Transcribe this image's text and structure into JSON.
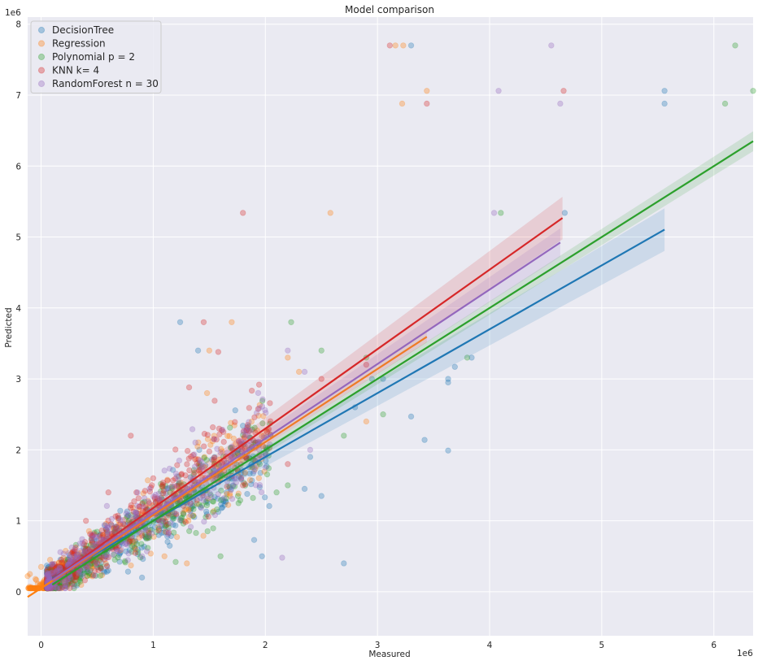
{
  "chart_data": {
    "type": "scatter",
    "title": "Model comparison",
    "xlabel": "Measured",
    "ylabel": "Predicted",
    "x_offset_label": "1e6",
    "y_offset_label": "1e6",
    "xlim": [
      -0.12,
      6.35
    ],
    "ylim": [
      -0.62,
      8.1
    ],
    "xticks": [
      0,
      1,
      2,
      3,
      4,
      5,
      6
    ],
    "yticks": [
      0,
      1,
      2,
      3,
      4,
      5,
      6,
      7,
      8
    ],
    "grid": true,
    "legend_position": "top-left",
    "series": [
      {
        "name": "DecisionTree",
        "color": "#1f77b4",
        "fit": {
          "x_range": [
            0.1,
            5.56
          ],
          "slope": 0.9,
          "intercept": 0.1,
          "band": 0.3
        },
        "points": [
          [
            3.3,
            7.7
          ],
          [
            5.56,
            7.06
          ],
          [
            5.56,
            6.88
          ],
          [
            4.67,
            5.34
          ],
          [
            1.24,
            3.8
          ],
          [
            1.4,
            3.4
          ],
          [
            3.84,
            3.3
          ],
          [
            3.69,
            3.17
          ],
          [
            3.63,
            3.0
          ],
          [
            3.63,
            2.95
          ],
          [
            3.3,
            2.47
          ],
          [
            3.42,
            2.14
          ],
          [
            3.63,
            1.99
          ],
          [
            2.7,
            0.4
          ],
          [
            1.97,
            0.5
          ],
          [
            2.5,
            1.35
          ],
          [
            2.35,
            1.45
          ],
          [
            1.9,
            0.73
          ],
          [
            2.95,
            3.0
          ],
          [
            3.05,
            3.0
          ],
          [
            2.8,
            2.6
          ],
          [
            2.4,
            1.9
          ],
          [
            0.6,
            0.3
          ],
          [
            0.35,
            0.25
          ],
          [
            0.9,
            0.2
          ]
        ]
      },
      {
        "name": "Regression",
        "color": "#ff7f0e",
        "fit": {
          "x_range": [
            -0.12,
            3.44
          ],
          "slope": 1.03,
          "intercept": 0.05,
          "band": 0.08
        },
        "points": [
          [
            3.16,
            7.7
          ],
          [
            3.23,
            7.7
          ],
          [
            3.44,
            7.06
          ],
          [
            3.22,
            6.88
          ],
          [
            2.58,
            5.34
          ],
          [
            1.7,
            3.8
          ],
          [
            1.5,
            3.4
          ],
          [
            2.2,
            3.3
          ],
          [
            1.48,
            2.8
          ],
          [
            -0.1,
            0.25
          ],
          [
            -0.05,
            0.18
          ],
          [
            0.0,
            0.35
          ],
          [
            0.05,
            0.2
          ],
          [
            0.08,
            0.45
          ],
          [
            -0.12,
            0.22
          ],
          [
            0.02,
            0.12
          ],
          [
            1.3,
            0.4
          ],
          [
            1.1,
            0.5
          ],
          [
            2.9,
            2.4
          ],
          [
            2.3,
            3.1
          ]
        ]
      },
      {
        "name": "Polynomial p = 2",
        "color": "#2ca02c",
        "fit": {
          "x_range": [
            0.1,
            6.35
          ],
          "slope": 1.0,
          "intercept": 0.0,
          "band": 0.14
        },
        "points": [
          [
            6.19,
            7.7
          ],
          [
            6.35,
            7.06
          ],
          [
            6.1,
            6.88
          ],
          [
            4.1,
            5.34
          ],
          [
            2.23,
            3.8
          ],
          [
            2.5,
            3.4
          ],
          [
            2.9,
            3.3
          ],
          [
            3.8,
            3.3
          ],
          [
            1.6,
            0.5
          ],
          [
            2.2,
            1.5
          ],
          [
            2.1,
            1.4
          ],
          [
            3.05,
            2.5
          ],
          [
            1.2,
            0.42
          ],
          [
            2.7,
            2.2
          ],
          [
            1.95,
            1.8
          ]
        ]
      },
      {
        "name": "KNN k= 4",
        "color": "#d62728",
        "fit": {
          "x_range": [
            0.1,
            4.65
          ],
          "slope": 1.12,
          "intercept": 0.06,
          "band": 0.3
        },
        "points": [
          [
            3.11,
            7.7
          ],
          [
            4.66,
            7.06
          ],
          [
            3.44,
            6.88
          ],
          [
            1.8,
            5.34
          ],
          [
            1.45,
            3.8
          ],
          [
            1.58,
            3.38
          ],
          [
            1.32,
            2.88
          ],
          [
            0.8,
            2.2
          ],
          [
            2.5,
            3.0
          ],
          [
            2.9,
            3.2
          ],
          [
            0.4,
            1.0
          ],
          [
            0.6,
            1.4
          ],
          [
            1.0,
            1.6
          ],
          [
            2.2,
            1.8
          ],
          [
            1.8,
            1.5
          ]
        ]
      },
      {
        "name": "RandomForest n = 30",
        "color": "#9467bd",
        "fit": {
          "x_range": [
            0.1,
            4.63
          ],
          "slope": 1.05,
          "intercept": 0.06,
          "band": 0.2
        },
        "points": [
          [
            4.55,
            7.7
          ],
          [
            4.08,
            7.06
          ],
          [
            4.63,
            6.88
          ],
          [
            4.04,
            5.34
          ],
          [
            2.2,
            3.4
          ],
          [
            2.35,
            3.1
          ],
          [
            2.15,
            0.48
          ],
          [
            1.9,
            1.7
          ],
          [
            2.4,
            2.0
          ],
          [
            0.9,
            0.5
          ]
        ]
      }
    ]
  }
}
